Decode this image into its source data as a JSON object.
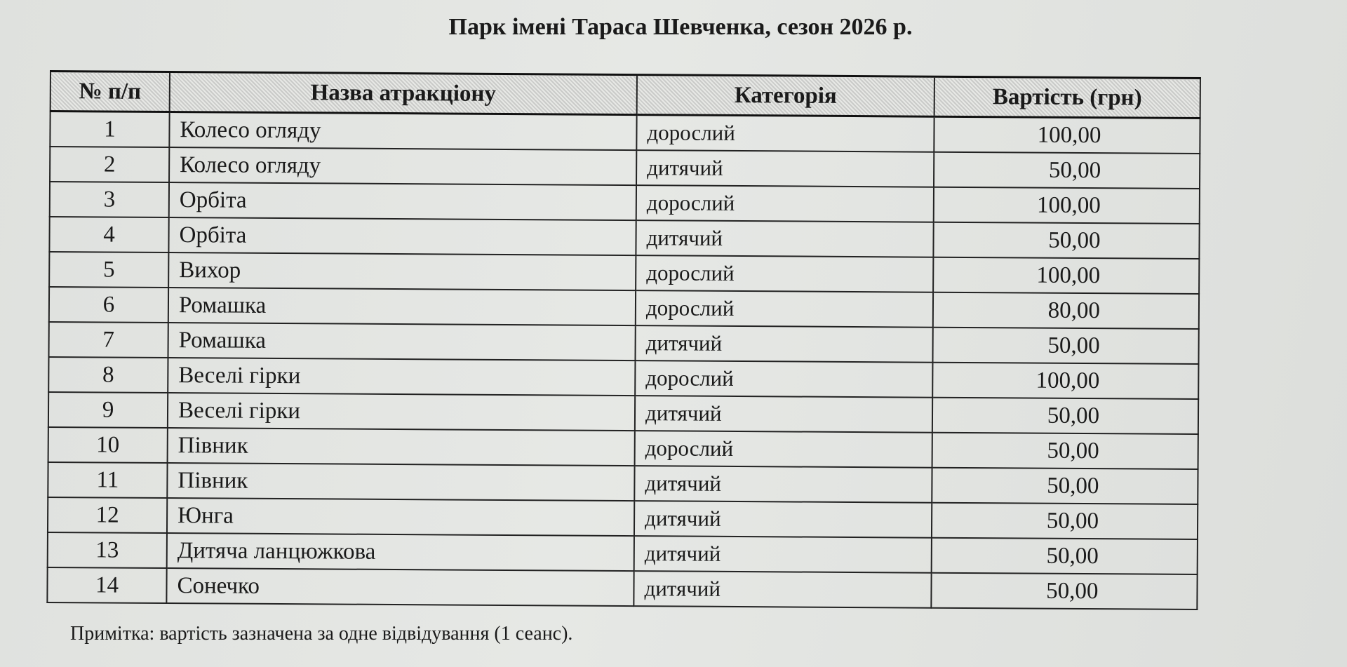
{
  "title": "Парк імені Тараса Шевченка, сезон 2026 р.",
  "table": {
    "headers": [
      "№ п/п",
      "Назва атракціону",
      "Категорія",
      "Вартість (грн)"
    ],
    "rows": [
      [
        "1",
        "Колесо огляду",
        "дорослий",
        "100,00"
      ],
      [
        "2",
        "Колесо огляду",
        "дитячий",
        "50,00"
      ],
      [
        "3",
        "Орбіта",
        "дорослий",
        "100,00"
      ],
      [
        "4",
        "Орбіта",
        "дитячий",
        "50,00"
      ],
      [
        "5",
        "Вихор",
        "дорослий",
        "100,00"
      ],
      [
        "6",
        "Ромашка",
        "дорослий",
        "80,00"
      ],
      [
        "7",
        "Ромашка",
        "дитячий",
        "50,00"
      ],
      [
        "8",
        "Веселі гірки",
        "дорослий",
        "100,00"
      ],
      [
        "9",
        "Веселі гірки",
        "дитячий",
        "50,00"
      ],
      [
        "10",
        "Півник",
        "дорослий",
        "50,00"
      ],
      [
        "11",
        "Півник",
        "дитячий",
        "50,00"
      ],
      [
        "12",
        "Юнга",
        "дитячий",
        "50,00"
      ],
      [
        "13",
        "Дитяча ланцюжкова",
        "дитячий",
        "50,00"
      ],
      [
        "14",
        "Сонечко",
        "дитячий",
        "50,00"
      ]
    ]
  },
  "note": "Примітка: вартість зазначена за одне відвідування (1 сеанс)."
}
